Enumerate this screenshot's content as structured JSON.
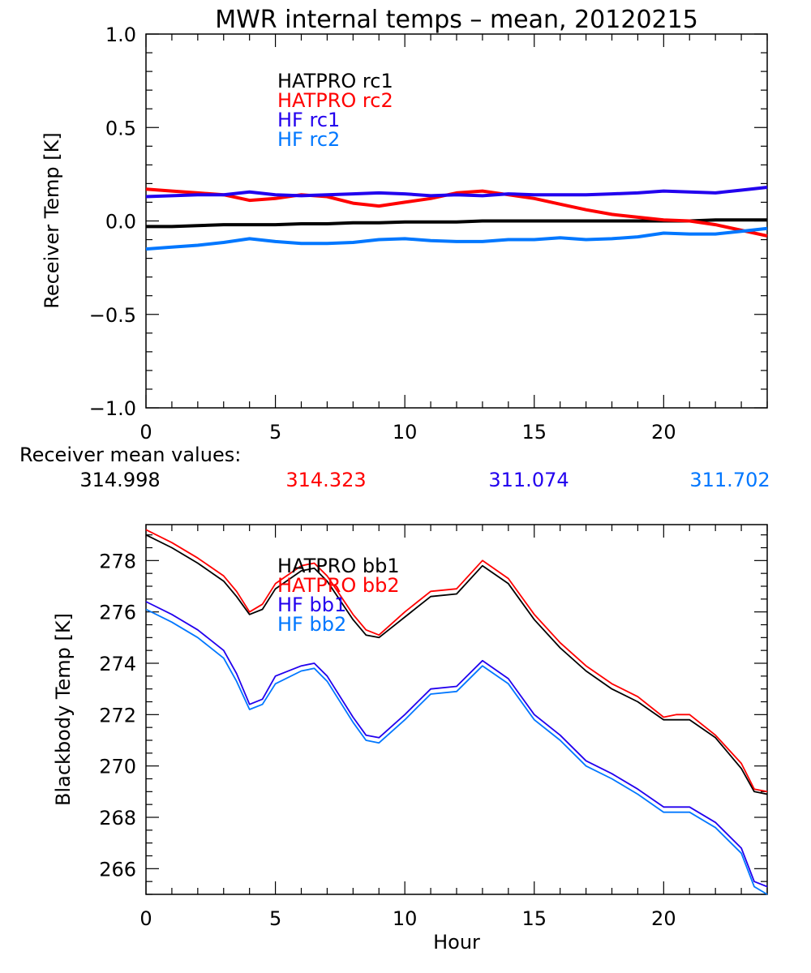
{
  "chart_data": [
    {
      "type": "line",
      "title": "MWR internal temps – mean, 20120215",
      "xlabel": "",
      "ylabel": "Receiver Temp [K]",
      "xlim": [
        0,
        24
      ],
      "ylim": [
        -1.0,
        1.0
      ],
      "xticks": [
        "0",
        "5",
        "10",
        "15",
        "20"
      ],
      "xtick_values": [
        0,
        5,
        10,
        15,
        20
      ],
      "yticks": [
        "1.0",
        "0.5",
        "0.0",
        "−0.5",
        "−1.0"
      ],
      "ytick_values": [
        1.0,
        0.5,
        0.0,
        -0.5,
        -1.0
      ],
      "grid": false,
      "legend_position": "top-left",
      "x": [
        0,
        1,
        2,
        3,
        4,
        5,
        6,
        7,
        8,
        9,
        10,
        11,
        12,
        13,
        14,
        15,
        16,
        17,
        18,
        19,
        20,
        21,
        22,
        23,
        24
      ],
      "series": [
        {
          "name": "HATPRO rc1",
          "color": "#000000",
          "values": [
            -0.03,
            -0.03,
            -0.025,
            -0.02,
            -0.02,
            -0.02,
            -0.015,
            -0.015,
            -0.01,
            -0.01,
            -0.005,
            -0.005,
            -0.005,
            0.0,
            0.0,
            0.0,
            0.0,
            0.0,
            0.0,
            0.0,
            0.0,
            0.0,
            0.005,
            0.005,
            0.005
          ]
        },
        {
          "name": "HATPRO rc2",
          "color": "#ff0000",
          "values": [
            0.17,
            0.16,
            0.15,
            0.14,
            0.11,
            0.12,
            0.14,
            0.13,
            0.095,
            0.08,
            0.1,
            0.12,
            0.15,
            0.16,
            0.14,
            0.12,
            0.09,
            0.06,
            0.035,
            0.02,
            0.005,
            0.0,
            -0.02,
            -0.05,
            -0.08
          ]
        },
        {
          "name": "HF rc1",
          "color": "#2200ee",
          "values": [
            0.13,
            0.135,
            0.14,
            0.14,
            0.155,
            0.14,
            0.135,
            0.14,
            0.145,
            0.15,
            0.145,
            0.135,
            0.14,
            0.135,
            0.145,
            0.14,
            0.14,
            0.14,
            0.145,
            0.15,
            0.16,
            0.155,
            0.15,
            0.165,
            0.18
          ]
        },
        {
          "name": "HF rc2",
          "color": "#0077ff",
          "values": [
            -0.15,
            -0.14,
            -0.13,
            -0.115,
            -0.095,
            -0.11,
            -0.12,
            -0.12,
            -0.115,
            -0.1,
            -0.095,
            -0.105,
            -0.11,
            -0.11,
            -0.1,
            -0.1,
            -0.09,
            -0.1,
            -0.095,
            -0.085,
            -0.065,
            -0.07,
            -0.07,
            -0.055,
            -0.04
          ]
        }
      ]
    },
    {
      "type": "line",
      "title": "",
      "xlabel": "Hour",
      "ylabel": "Blackbody Temp [K]",
      "xlim": [
        0,
        24
      ],
      "ylim": [
        265,
        279.4
      ],
      "xticks": [
        "0",
        "5",
        "10",
        "15",
        "20"
      ],
      "xtick_values": [
        0,
        5,
        10,
        15,
        20
      ],
      "yticks": [
        "278",
        "276",
        "274",
        "272",
        "270",
        "268",
        "266"
      ],
      "ytick_values": [
        278,
        276,
        274,
        272,
        270,
        268,
        266
      ],
      "grid": false,
      "legend_position": "top-center",
      "x": [
        0,
        1,
        2,
        3,
        3.5,
        4,
        4.5,
        5,
        6,
        6.5,
        7,
        8,
        8.5,
        9,
        10,
        10.5,
        11,
        12,
        13,
        14,
        15,
        16,
        17,
        18,
        19,
        20,
        20.5,
        21,
        22,
        23,
        23.5,
        24
      ],
      "series": [
        {
          "name": "HATPRO bb1",
          "color": "#000000",
          "values": [
            279.0,
            278.5,
            277.9,
            277.2,
            276.6,
            275.9,
            276.1,
            276.9,
            277.6,
            277.7,
            277.2,
            275.7,
            275.1,
            275.0,
            275.8,
            276.2,
            276.6,
            276.7,
            277.8,
            277.1,
            275.7,
            274.6,
            273.7,
            273.0,
            272.5,
            271.8,
            271.8,
            271.8,
            271.1,
            269.9,
            269.0,
            268.9
          ]
        },
        {
          "name": "HATPRO bb2",
          "color": "#ff0000",
          "values": [
            279.2,
            278.7,
            278.1,
            277.4,
            276.8,
            276.0,
            276.3,
            277.1,
            277.8,
            277.9,
            277.4,
            275.9,
            275.3,
            275.1,
            276.0,
            276.4,
            276.8,
            276.9,
            278.0,
            277.3,
            275.9,
            274.8,
            273.9,
            273.2,
            272.7,
            271.9,
            272.0,
            272.0,
            271.2,
            270.1,
            269.1,
            269.0
          ]
        },
        {
          "name": "HF bb1",
          "color": "#2200ee",
          "values": [
            276.4,
            275.9,
            275.3,
            274.5,
            273.6,
            272.4,
            272.6,
            273.5,
            273.9,
            274.0,
            273.5,
            271.9,
            271.2,
            271.1,
            272.0,
            272.5,
            273.0,
            273.1,
            274.1,
            273.4,
            272.0,
            271.2,
            270.2,
            269.7,
            269.1,
            268.4,
            268.4,
            268.4,
            267.8,
            266.8,
            265.5,
            265.3
          ]
        },
        {
          "name": "HF bb2",
          "color": "#0077ff",
          "values": [
            276.1,
            275.6,
            275.0,
            274.2,
            273.3,
            272.2,
            272.4,
            273.2,
            273.7,
            273.8,
            273.3,
            271.7,
            271.0,
            270.9,
            271.8,
            272.3,
            272.8,
            272.9,
            273.9,
            273.2,
            271.8,
            271.0,
            270.0,
            269.5,
            268.9,
            268.2,
            268.2,
            268.2,
            267.6,
            266.6,
            265.3,
            265.0
          ]
        }
      ]
    }
  ],
  "receiver_means": {
    "label": "Receiver mean values:",
    "values": [
      {
        "text": "314.998",
        "color": "#000000"
      },
      {
        "text": "314.323",
        "color": "#ff0000"
      },
      {
        "text": "311.074",
        "color": "#2200ee"
      },
      {
        "text": "311.702",
        "color": "#0077ff"
      }
    ]
  }
}
